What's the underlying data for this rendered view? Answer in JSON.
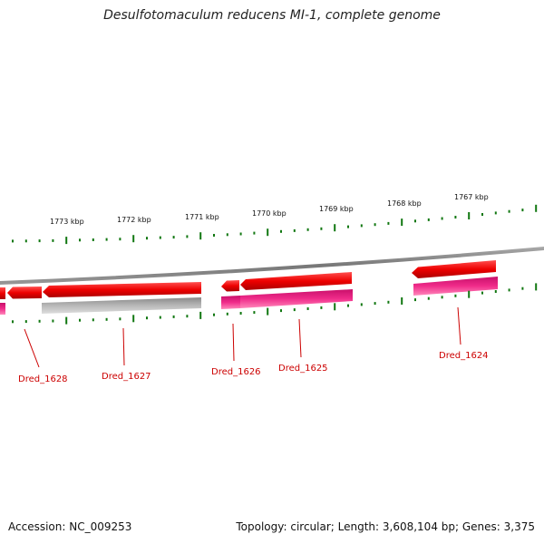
{
  "title": "Desulfotomaculum reducens MI-1, complete genome",
  "kbp_ticks": [
    "1773 kbp",
    "1772 kbp",
    "1771 kbp",
    "1770 kbp",
    "1769 kbp",
    "1768 kbp",
    "1767 kbp"
  ],
  "gene_labels": [
    "Dred_1628",
    "Dred_1627",
    "Dred_1626",
    "Dred_1625",
    "Dred_1624"
  ],
  "footer": {
    "accession": "Accession: NC_009253",
    "summary": "Topology: circular; Length: 3,608,104 bp; Genes: 3,375"
  },
  "colors": {
    "gene_arrow": "#ee0000",
    "cds_bar": "#e0207a",
    "grey_bar": "#aaaaaa",
    "backbone": "#888888",
    "tick": "#117711",
    "label": "#cc0000"
  }
}
